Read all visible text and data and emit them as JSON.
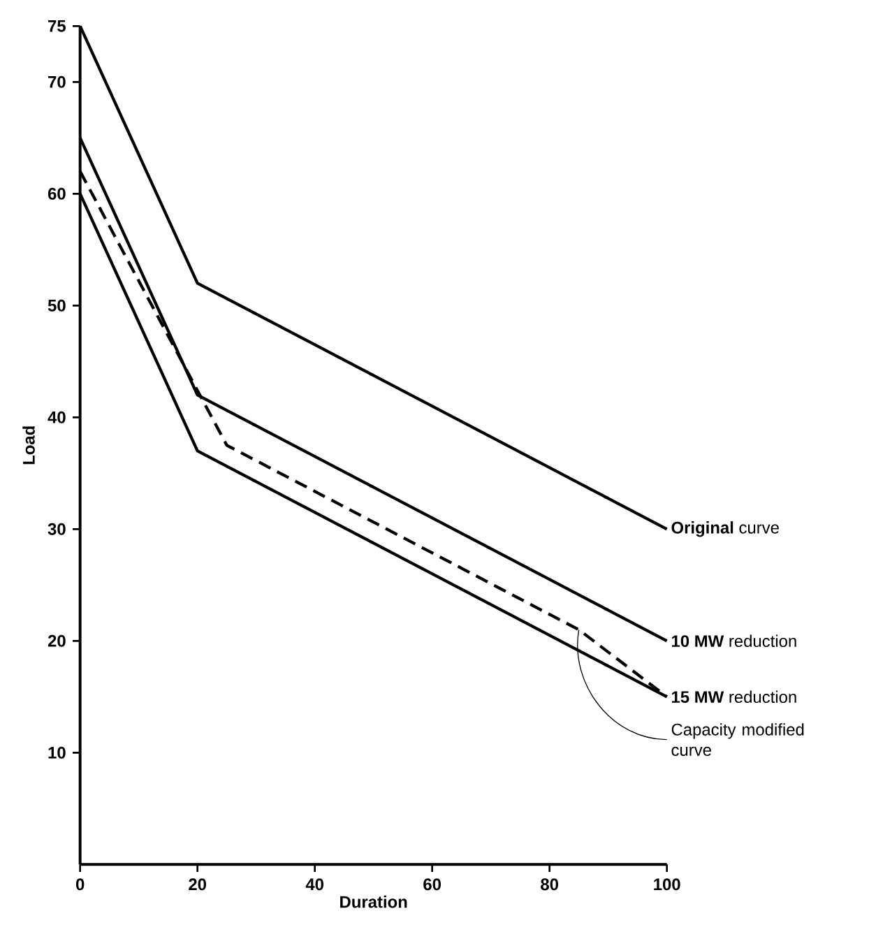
{
  "chart_data": {
    "type": "line",
    "xlabel": "Duration",
    "ylabel": "Load",
    "xlim": [
      0,
      100
    ],
    "ylim": [
      0,
      75
    ],
    "xticks": [
      0,
      20,
      40,
      60,
      80,
      100
    ],
    "yticks": [
      10,
      20,
      30,
      40,
      50,
      60,
      70,
      75
    ],
    "grid": false,
    "legend": false,
    "marker": "none",
    "series": [
      {
        "name": "**Original** curve",
        "color": "#000000",
        "line_style": "solid",
        "x": [
          0,
          20,
          100
        ],
        "values": [
          75,
          52,
          30
        ]
      },
      {
        "name": "**10 MW** reduction",
        "color": "#000000",
        "line_style": "solid",
        "x": [
          0,
          20,
          100
        ],
        "values": [
          65,
          42,
          20
        ]
      },
      {
        "name": "**15 MW** reduction",
        "color": "#000000",
        "line_style": "solid",
        "x": [
          0,
          20,
          100
        ],
        "values": [
          60,
          37,
          15
        ]
      },
      {
        "name": "Capacity modified curve",
        "color": "#000000",
        "line_style": "dashed",
        "x": [
          0,
          25,
          85,
          100
        ],
        "values": [
          62,
          37.5,
          21,
          15
        ]
      }
    ]
  }
}
